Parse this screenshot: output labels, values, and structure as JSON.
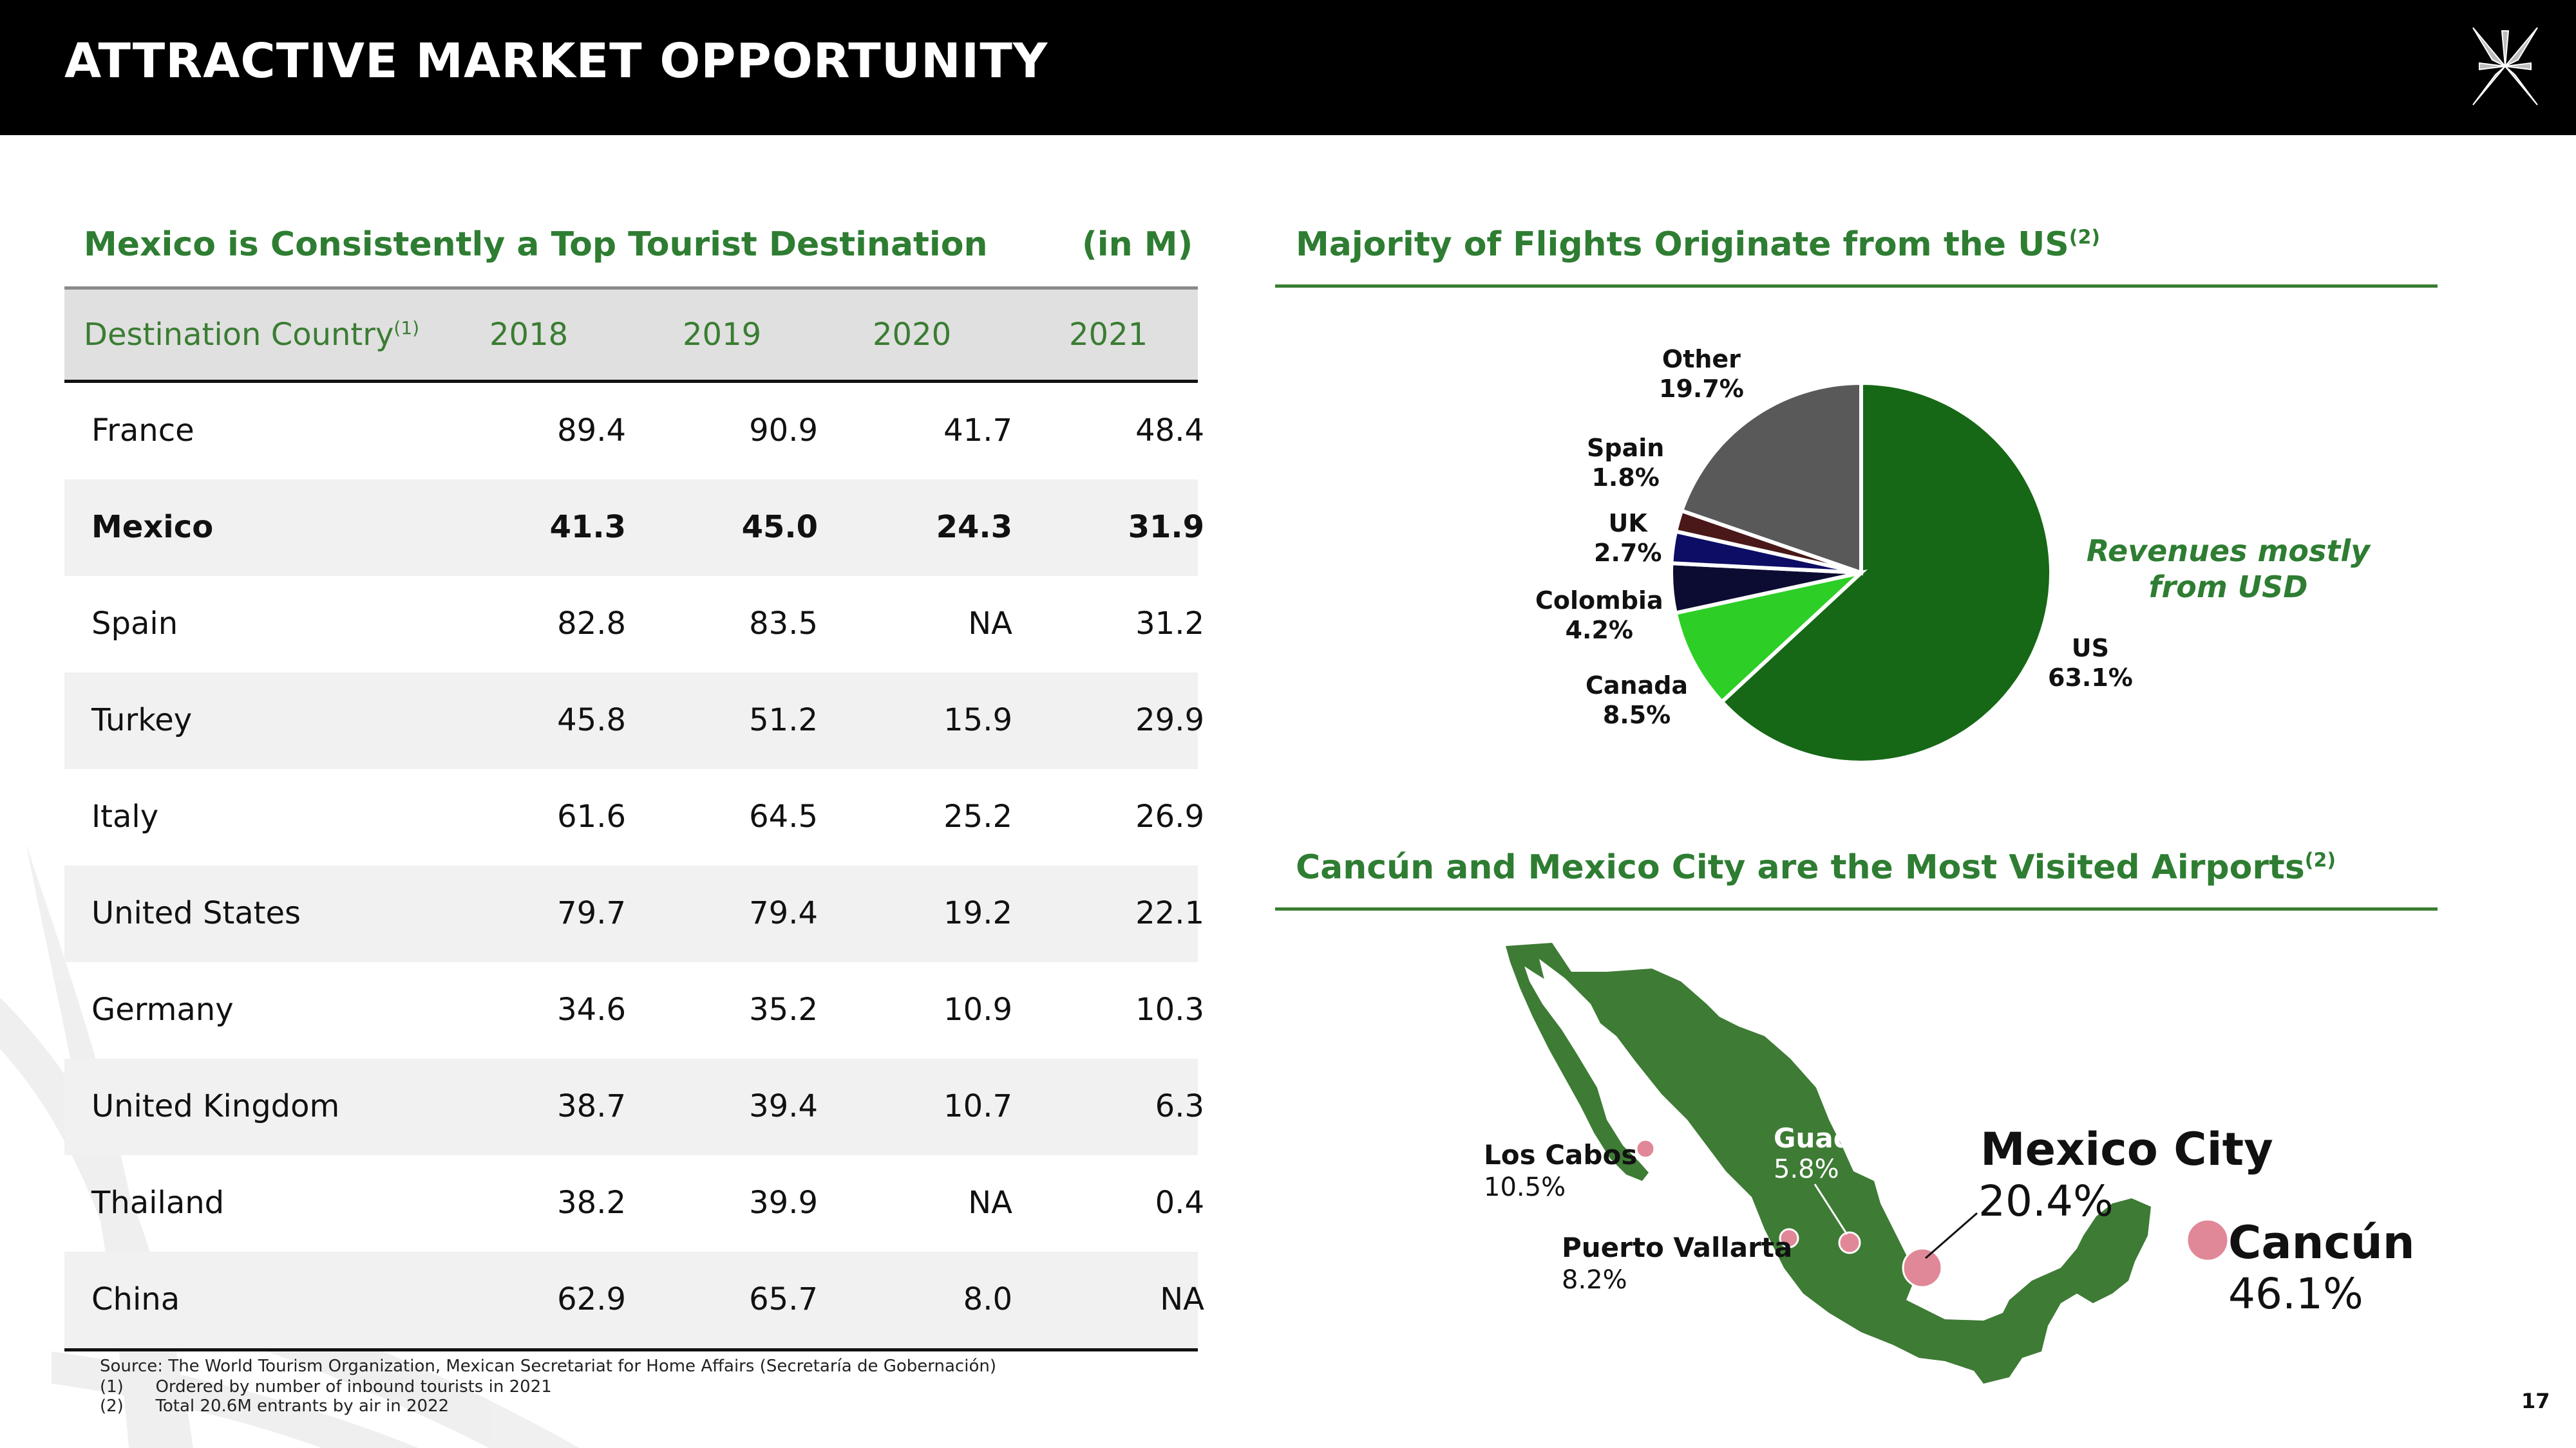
{
  "header": {
    "title": "ATTRACTIVE MARKET OPPORTUNITY"
  },
  "left": {
    "title": "Mexico is Consistently a Top Tourist Destination",
    "unit": "(in M)",
    "columns": {
      "country": "Destination Country",
      "country_sup": "(1)",
      "y2018": "2018",
      "y2019": "2019",
      "y2020": "2020",
      "y2021": "2021"
    },
    "rows": [
      {
        "country": "France",
        "v2018": "89.4",
        "v2019": "90.9",
        "v2020": "41.7",
        "v2021": "48.4"
      },
      {
        "country": "Mexico",
        "v2018": "41.3",
        "v2019": "45.0",
        "v2020": "24.3",
        "v2021": "31.9"
      },
      {
        "country": "Spain",
        "v2018": "82.8",
        "v2019": "83.5",
        "v2020": "NA",
        "v2021": "31.2"
      },
      {
        "country": "Turkey",
        "v2018": "45.8",
        "v2019": "51.2",
        "v2020": "15.9",
        "v2021": "29.9"
      },
      {
        "country": "Italy",
        "v2018": "61.6",
        "v2019": "64.5",
        "v2020": "25.2",
        "v2021": "26.9"
      },
      {
        "country": "United States",
        "v2018": "79.7",
        "v2019": "79.4",
        "v2020": "19.2",
        "v2021": "22.1"
      },
      {
        "country": "Germany",
        "v2018": "34.6",
        "v2019": "35.2",
        "v2020": "10.9",
        "v2021": "10.3"
      },
      {
        "country": "United Kingdom",
        "v2018": "38.7",
        "v2019": "39.4",
        "v2020": "10.7",
        "v2021": "6.3"
      },
      {
        "country": "Thailand",
        "v2018": "38.2",
        "v2019": "39.9",
        "v2020": "NA",
        "v2021": "0.4"
      },
      {
        "country": "China",
        "v2018": "62.9",
        "v2019": "65.7",
        "v2020": "8.0",
        "v2021": "NA"
      }
    ],
    "footnotes": {
      "source": "Source: The World Tourism Organization, Mexican Secretariat for Home Affairs (Secretaría de Gobernación)",
      "n1_mark": "(1)",
      "n1_text": "Ordered by number of inbound tourists in 2021",
      "n2_mark": "(2)",
      "n2_text": "Total 20.6M entrants by air in 2022"
    }
  },
  "flights": {
    "title": "Majority of Flights Originate from the US",
    "title_sup": "(2)",
    "note": "Revenues mostly from USD",
    "labels": {
      "us_name": "US",
      "us_pct": "63.1%",
      "canada_name": "Canada",
      "canada_pct": "8.5%",
      "colombia_name": "Colombia",
      "colombia_pct": "4.2%",
      "uk_name": "UK",
      "uk_pct": "2.7%",
      "spain_name": "Spain",
      "spain_pct": "1.8%",
      "other_name": "Other",
      "other_pct": "19.7%"
    }
  },
  "chart_data": {
    "type": "pie",
    "categories": [
      "US",
      "Canada",
      "Colombia",
      "UK",
      "Spain",
      "Other"
    ],
    "values": [
      63.1,
      8.5,
      4.2,
      2.7,
      1.8,
      19.7
    ],
    "colors": [
      "#166816",
      "#2dce26",
      "#0c0c33",
      "#0d0d66",
      "#4a1818",
      "#595959"
    ],
    "title": "Majority of Flights Originate from the US"
  },
  "airports": {
    "title": "Cancún and Mexico City are the Most Visited Airports",
    "title_sup": "(2)",
    "map_color": "#3e7b35",
    "marker_color": "#e08898",
    "cities": {
      "loscabos_name": "Los Cabos",
      "loscabos_pct": "10.5%",
      "guadalajara_name": "Guadalajara",
      "guadalajara_pct": "5.8%",
      "mexicocity_name": "Mexico City",
      "mexicocity_pct": "20.4%",
      "puertovallarta_name": "Puerto Vallarta",
      "puertovallarta_pct": "8.2%",
      "cancun_name": "Cancún",
      "cancun_pct": "46.1%"
    }
  },
  "page_number": "17"
}
